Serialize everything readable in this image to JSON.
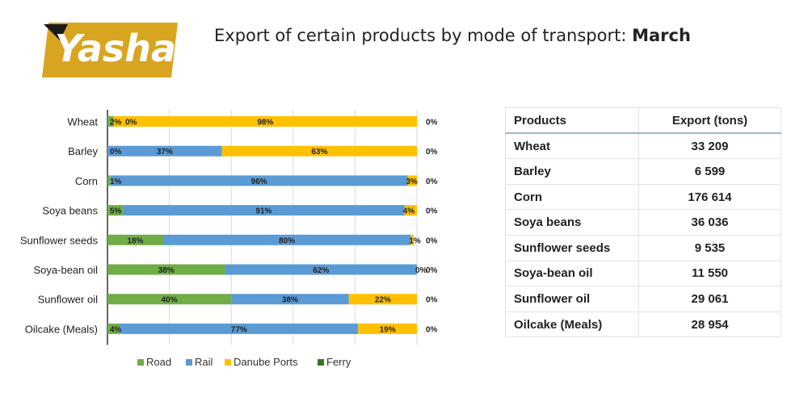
{
  "logo": {
    "text": "Yashar",
    "bg_color": "#d9a520",
    "accent_color": "#1a1a1a"
  },
  "title": {
    "main": "Export of certain products by mode of transport: ",
    "month": "March"
  },
  "chart_data": {
    "type": "bar",
    "orientation": "horizontal-stacked-100",
    "categories": [
      "Wheat",
      "Barley",
      "Corn",
      "Soya beans",
      "Sunflower seeds",
      "Soya-bean oil",
      "Sunflower oil",
      "Oilcake (Meals)"
    ],
    "series": [
      {
        "name": "Road",
        "color": "#70ad47",
        "values": [
          2,
          0,
          1,
          5,
          18,
          38,
          40,
          4
        ]
      },
      {
        "name": "Rail",
        "color": "#5b9bd5",
        "values": [
          0,
          37,
          96,
          91,
          80,
          62,
          38,
          77
        ]
      },
      {
        "name": "Danube Ports",
        "color": "#ffc000",
        "values": [
          98,
          63,
          3,
          4,
          1,
          0,
          22,
          19
        ]
      },
      {
        "name": "Ferry",
        "color": "#38761d",
        "values": [
          0,
          0,
          0,
          0,
          0,
          0,
          0,
          0
        ]
      }
    ],
    "segment_labels": [
      [
        "2%",
        "0%",
        "98%",
        "0%"
      ],
      [
        "0%",
        "37%",
        "63%",
        "0%"
      ],
      [
        "1%",
        "96%",
        "3%",
        "0%"
      ],
      [
        "5%",
        "91%",
        "4%",
        "0%"
      ],
      [
        "18%",
        "80%",
        "1%",
        "0%"
      ],
      [
        "38%",
        "62%",
        "0%",
        "0%"
      ],
      [
        "40%",
        "38%",
        "22%",
        "0%"
      ],
      [
        "4%",
        "77%",
        "19%",
        "0%"
      ]
    ],
    "xlim": [
      0,
      100
    ],
    "grid": true,
    "legend_position": "bottom"
  },
  "table": {
    "headers": [
      "Products",
      "Export (tons)"
    ],
    "rows": [
      [
        "Wheat",
        "33 209"
      ],
      [
        "Barley",
        "6 599"
      ],
      [
        "Corn",
        "176 614"
      ],
      [
        "Soya beans",
        "36 036"
      ],
      [
        "Sunflower seeds",
        "9 535"
      ],
      [
        "Soya-bean oil",
        "11 550"
      ],
      [
        "Sunflower oil",
        "29 061"
      ],
      [
        "Oilcake (Meals)",
        "28 954"
      ]
    ]
  }
}
